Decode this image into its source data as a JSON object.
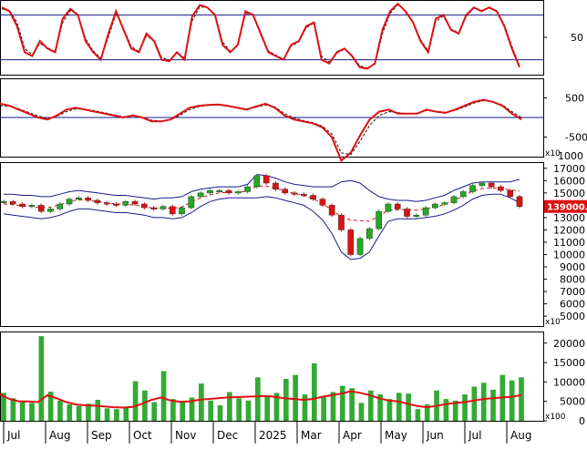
{
  "colors": {
    "background": "#ffffff",
    "frame": "#000000",
    "reference_line": "#1a1a8c",
    "indicator_line": "#dd1111",
    "indicator_dash": "#111111",
    "bollinger": "#1a1a8c",
    "ma_dashed": "#dd1111",
    "candle_up": "#22aa22",
    "candle_down": "#dd1111",
    "volume_bar": "#33aa33",
    "volume_ma": "#dd1111",
    "price_tag_bg": "#dd1111",
    "price_tag_text": "#ffffff"
  },
  "x_axis": {
    "labels": [
      "Jul",
      "Aug",
      "Sep",
      "Oct",
      "Nov",
      "Dec",
      "2025",
      "Mar",
      "Apr",
      "May",
      "Jun",
      "Jul",
      "Aug"
    ]
  },
  "panels": {
    "stoch": {
      "tick_labels": [
        "50"
      ],
      "ticks": [
        50
      ],
      "ref_levels": [
        80,
        20
      ],
      "ylim": [
        0,
        100
      ]
    },
    "macd": {
      "tick_labels": [
        "500",
        "-500"
      ],
      "ticks": [
        500,
        -500
      ],
      "ref_levels": [
        0
      ],
      "ylim": [
        -1000,
        1000
      ],
      "multiplier_label": "x10",
      "corner_label": "1000"
    },
    "price": {
      "tick_labels": [
        "17000",
        "16000",
        "15000",
        "14000",
        "13000",
        "12000",
        "11000",
        "10000",
        "9000",
        "8000",
        "7000",
        "6000",
        "5000"
      ],
      "ticks": [
        17000,
        16000,
        15000,
        14000,
        13000,
        12000,
        11000,
        10000,
        9000,
        8000,
        7000,
        6000,
        5000
      ],
      "ylim": [
        4200,
        17500
      ],
      "last_price_label": "139000.0",
      "last_price": 13900,
      "multiplier_label": "x10"
    },
    "volume": {
      "tick_labels": [
        "20000",
        "15000",
        "10000",
        "5000",
        "0"
      ],
      "ticks": [
        20000,
        15000,
        10000,
        5000,
        0
      ],
      "ylim": [
        0,
        23000
      ],
      "multiplier_label": "x100"
    }
  },
  "chart_data": [
    {
      "type": "line",
      "panel": "stochastic",
      "series": [
        {
          "role": "main",
          "values": [
            90,
            85,
            65,
            30,
            25,
            45,
            35,
            30,
            75,
            88,
            80,
            45,
            30,
            20,
            55,
            85,
            60,
            35,
            30,
            55,
            45,
            20,
            18,
            30,
            20,
            78,
            93,
            90,
            80,
            40,
            30,
            40,
            85,
            80,
            55,
            30,
            25,
            20,
            40,
            45,
            65,
            70,
            20,
            15,
            30,
            35,
            25,
            10,
            8,
            15,
            60,
            85,
            95,
            85,
            70,
            45,
            30,
            75,
            80,
            60,
            55,
            80,
            90,
            85,
            90,
            85,
            65,
            35,
            10
          ]
        },
        {
          "role": "signal",
          "values": [
            88,
            86,
            70,
            35,
            27,
            42,
            36,
            31,
            70,
            86,
            80,
            48,
            32,
            22,
            50,
            82,
            62,
            38,
            31,
            52,
            46,
            23,
            19,
            29,
            22,
            72,
            91,
            90,
            81,
            44,
            31,
            39,
            82,
            81,
            57,
            32,
            26,
            21,
            38,
            44,
            63,
            69,
            25,
            17,
            29,
            34,
            26,
            12,
            9,
            14,
            55,
            82,
            94,
            86,
            71,
            47,
            32,
            71,
            79,
            61,
            56,
            78,
            89,
            86,
            89,
            85,
            67,
            38,
            12
          ]
        }
      ]
    },
    {
      "type": "line",
      "panel": "macd",
      "series": [
        {
          "role": "main",
          "values": [
            350,
            300,
            200,
            100,
            0,
            -50,
            50,
            200,
            250,
            200,
            150,
            100,
            50,
            0,
            50,
            0,
            -100,
            -100,
            -50,
            100,
            250,
            300,
            320,
            330,
            300,
            250,
            200,
            280,
            350,
            250,
            50,
            -50,
            -100,
            -150,
            -250,
            -500,
            -1100,
            -900,
            -450,
            -50,
            150,
            200,
            100,
            100,
            100,
            200,
            150,
            120,
            200,
            300,
            400,
            450,
            400,
            300,
            100,
            -50
          ]
        },
        {
          "role": "signal",
          "values": [
            300,
            290,
            220,
            130,
            40,
            -20,
            30,
            150,
            220,
            210,
            170,
            120,
            70,
            20,
            40,
            10,
            -70,
            -90,
            -60,
            60,
            200,
            280,
            310,
            320,
            300,
            260,
            220,
            260,
            320,
            270,
            100,
            -10,
            -80,
            -130,
            -220,
            -420,
            -900,
            -950,
            -600,
            -200,
            50,
            150,
            120,
            100,
            100,
            180,
            160,
            130,
            180,
            270,
            370,
            430,
            410,
            320,
            150,
            0
          ]
        }
      ]
    },
    {
      "type": "line",
      "panel": "price",
      "series": [
        {
          "role": "close",
          "values": [
            14300,
            14100,
            13900,
            14000,
            13500,
            13700,
            14100,
            14500,
            14600,
            14400,
            14200,
            14100,
            14000,
            14300,
            14100,
            13800,
            13700,
            13900,
            13300,
            13800,
            14700,
            15000,
            15200,
            15200,
            15000,
            15100,
            15500,
            16400,
            15800,
            15300,
            15000,
            14900,
            14800,
            14500,
            14000,
            13200,
            12000,
            10000,
            11300,
            12100,
            13500,
            14100,
            13700,
            13100,
            13200,
            13800,
            14100,
            14200,
            14700,
            15100,
            15600,
            15800,
            15500,
            15200,
            14700,
            13900
          ]
        },
        {
          "role": "upper_band",
          "values": [
            14900,
            14900,
            14800,
            14800,
            14700,
            14700,
            14900,
            15100,
            15200,
            15100,
            15000,
            14900,
            14800,
            14800,
            14700,
            14600,
            14500,
            14600,
            14600,
            14700,
            15100,
            15300,
            15400,
            15500,
            15500,
            15500,
            15700,
            16500,
            16400,
            16200,
            15900,
            15700,
            15600,
            15500,
            15500,
            15500,
            15900,
            16000,
            15800,
            15200,
            14700,
            14500,
            14400,
            14400,
            14300,
            14400,
            14600,
            14800,
            15200,
            15500,
            15800,
            15900,
            15900,
            15900,
            15900,
            16100
          ]
        },
        {
          "role": "lower_band",
          "values": [
            13300,
            13200,
            13100,
            13000,
            12900,
            13000,
            13200,
            13500,
            13700,
            13700,
            13600,
            13500,
            13400,
            13400,
            13300,
            13200,
            13000,
            13000,
            12900,
            13000,
            13400,
            13900,
            14300,
            14500,
            14600,
            14600,
            14600,
            14600,
            14700,
            14600,
            14400,
            14200,
            14000,
            13500,
            12800,
            11700,
            10200,
            9600,
            9700,
            10200,
            11500,
            12700,
            12900,
            12900,
            12900,
            13000,
            13100,
            13300,
            13600,
            14000,
            14500,
            14800,
            14900,
            14900,
            14600,
            14200
          ]
        }
      ]
    },
    {
      "type": "bar",
      "panel": "volume",
      "series": [
        {
          "role": "volume",
          "values": [
            7200,
            5800,
            5000,
            4600,
            21800,
            7500,
            5200,
            4200,
            3800,
            4400,
            5400,
            3200,
            3000,
            3600,
            10200,
            7800,
            4800,
            12800,
            5600,
            4800,
            6000,
            9600,
            5200,
            4000,
            7400,
            5800,
            5200,
            11200,
            6400,
            7200,
            10800,
            11800,
            6800,
            14800,
            6200,
            7400,
            9000,
            8400,
            4600,
            7800,
            6800,
            5600,
            7200,
            7000,
            3000,
            4200,
            7800,
            5600,
            5200,
            6800,
            8800,
            9800,
            8000,
            11800,
            10400,
            11200
          ]
        },
        {
          "role": "volume_ma",
          "values": [
            6800,
            5600,
            5000,
            5000,
            4800,
            6600,
            5800,
            4800,
            4200,
            4000,
            3900,
            3700,
            3500,
            3400,
            3600,
            4400,
            5400,
            6000,
            5200,
            4900,
            5000,
            5400,
            5600,
            5800,
            6000,
            6100,
            6200,
            6300,
            6400,
            6200,
            5800,
            5600,
            5400,
            5600,
            6200,
            6600,
            7000,
            7600,
            7200,
            6600,
            5800,
            5200,
            5000,
            4400,
            3800,
            3500,
            3800,
            4300,
            4600,
            4800,
            5200,
            5600,
            5800,
            6000,
            6200,
            6600
          ]
        }
      ]
    }
  ]
}
